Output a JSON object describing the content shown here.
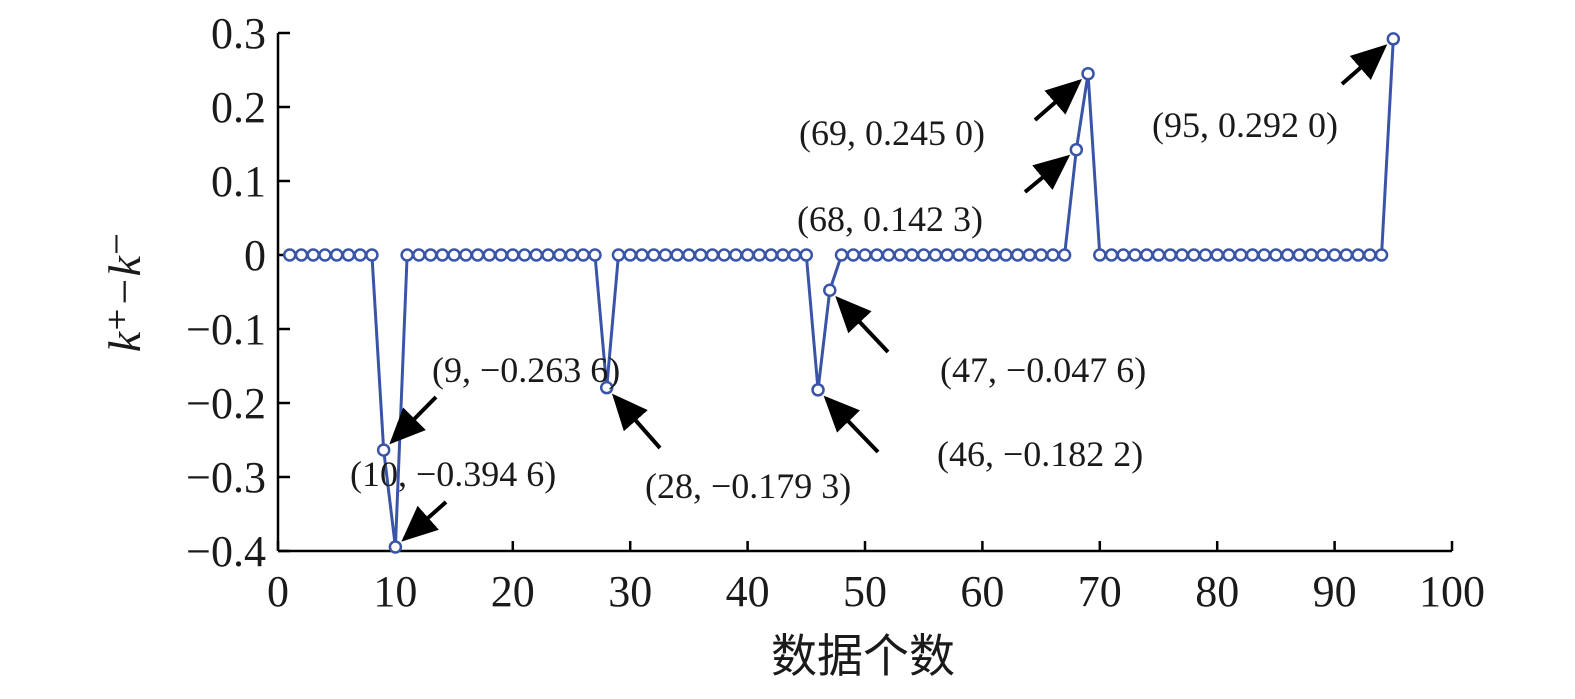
{
  "chart_data": {
    "type": "line",
    "xlabel": "数据个数",
    "ylabel": "k⁺−k⁻",
    "xlim": [
      0,
      100
    ],
    "ylim": [
      -0.4,
      0.3
    ],
    "x_ticks": [
      0,
      10,
      20,
      30,
      40,
      50,
      60,
      70,
      80,
      90,
      100
    ],
    "x_tick_labels": [
      "0",
      "10",
      "20",
      "30",
      "40",
      "50",
      "60",
      "70",
      "80",
      "90",
      "100"
    ],
    "y_ticks": [
      0.3,
      0.2,
      0.1,
      0,
      -0.1,
      -0.2,
      -0.3,
      -0.4
    ],
    "y_tick_labels": [
      "0.3",
      "0.2",
      "0.1",
      "0",
      "−0.1",
      "−0.2",
      "−0.3",
      "−0.4"
    ],
    "grid": false,
    "legend": "none",
    "colors": {
      "series": "#3a55a8",
      "axis": "#000000"
    },
    "series": [
      {
        "x": [
          1,
          2,
          3,
          4,
          5,
          6,
          7,
          8,
          9,
          10,
          11,
          12,
          13,
          14,
          15,
          16,
          17,
          18,
          19,
          20,
          21,
          22,
          23,
          24,
          25,
          26,
          27,
          28,
          29,
          30,
          31,
          32,
          33,
          34,
          35,
          36,
          37,
          38,
          39,
          40,
          41,
          42,
          43,
          44,
          45,
          46,
          47,
          48,
          49,
          50,
          51,
          52,
          53,
          54,
          55,
          56,
          57,
          58,
          59,
          60,
          61,
          62,
          63,
          64,
          65,
          66,
          67,
          68,
          69,
          70,
          71,
          72,
          73,
          74,
          75,
          76,
          77,
          78,
          79,
          80,
          81,
          82,
          83,
          84,
          85,
          86,
          87,
          88,
          89,
          90,
          91,
          92,
          93,
          94,
          95
        ],
        "values": [
          0,
          0,
          0,
          0,
          0,
          0,
          0,
          0,
          -0.2636,
          -0.3946,
          0,
          0,
          0,
          0,
          0,
          0,
          0,
          0,
          0,
          0,
          0,
          0,
          0,
          0,
          0,
          0,
          0,
          -0.1793,
          0,
          0,
          0,
          0,
          0,
          0,
          0,
          0,
          0,
          0,
          0,
          0,
          0,
          0,
          0,
          0,
          0,
          -0.1822,
          -0.0476,
          0,
          0,
          0,
          0,
          0,
          0,
          0,
          0,
          0,
          0,
          0,
          0,
          0,
          0,
          0,
          0,
          0,
          0,
          0,
          0,
          0.1423,
          0.245,
          0,
          0,
          0,
          0,
          0,
          0,
          0,
          0,
          0,
          0,
          0,
          0,
          0,
          0,
          0,
          0,
          0,
          0,
          0,
          0,
          0,
          0,
          0,
          0,
          0,
          0.292
        ]
      }
    ],
    "annotations": [
      {
        "text": "(9, −0.263 6)",
        "x": 9,
        "y": -0.2636
      },
      {
        "text": "(10, −0.394 6)",
        "x": 10,
        "y": -0.3946
      },
      {
        "text": "(28, −0.179 3)",
        "x": 28,
        "y": -0.1793
      },
      {
        "text": "(46, −0.182 2)",
        "x": 46,
        "y": -0.1822
      },
      {
        "text": "(47, −0.047 6)",
        "x": 47,
        "y": -0.0476
      },
      {
        "text": "(68, 0.142 3)",
        "x": 68,
        "y": 0.1423
      },
      {
        "text": "(69, 0.245 0)",
        "x": 69,
        "y": 0.245
      },
      {
        "text": "(95, 0.292 0)",
        "x": 95,
        "y": 0.292
      }
    ]
  }
}
